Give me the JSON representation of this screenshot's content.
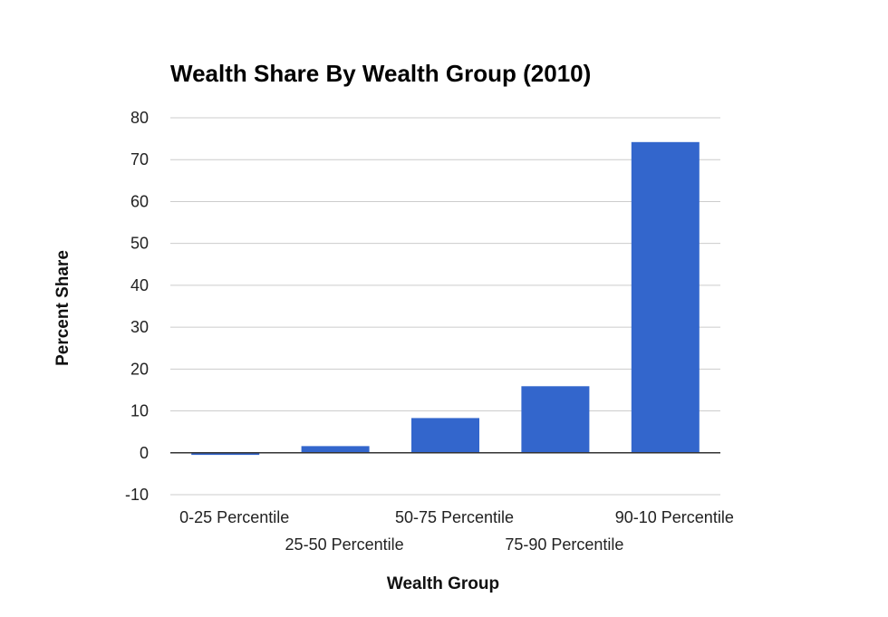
{
  "chart_data": {
    "type": "bar",
    "title": "Wealth Share By Wealth Group (2010)",
    "xlabel": "Wealth Group",
    "ylabel": "Percent Share",
    "categories": [
      "0-25 Percentile",
      "25-50 Percentile",
      "50-75 Percentile",
      "75-90 Percentile",
      "90-10 Percentile"
    ],
    "series": [
      {
        "values": [
          -0.5,
          1.6,
          8.3,
          15.9,
          74.2
        ]
      }
    ],
    "ylim": [
      -10,
      80
    ],
    "yticks": [
      -10,
      0,
      10,
      20,
      30,
      40,
      50,
      60,
      70,
      80
    ],
    "grid": true,
    "legend": "none",
    "colors": {
      "bar": "#3366cc",
      "grid": "#cccccc",
      "baseline": "#333333"
    }
  }
}
